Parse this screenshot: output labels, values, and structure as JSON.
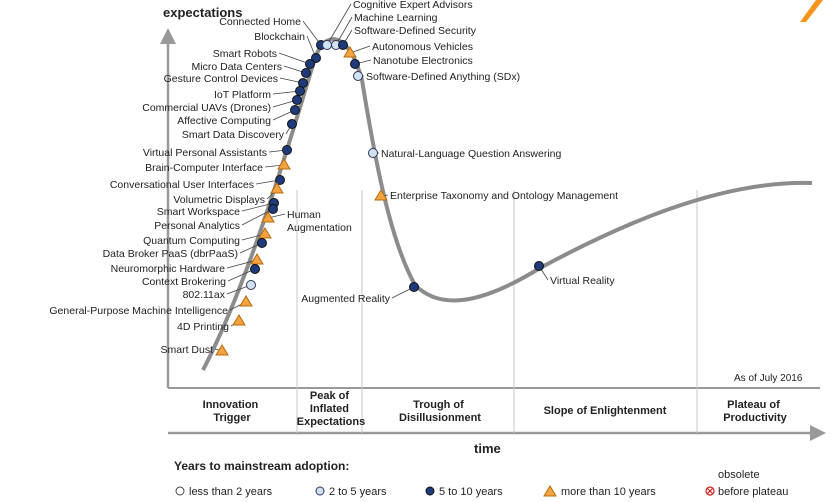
{
  "axes": {
    "y_label": "expectations",
    "x_label": "time"
  },
  "as_of": "As of July 2016",
  "phases": [
    "Innovation Trigger",
    "Peak of Inflated Expectations",
    "Trough of Disillusionment",
    "Slope of Enlightenment",
    "Plateau of Productivity"
  ],
  "technologies": [
    {
      "name": "Connected Home",
      "category": "5-10"
    },
    {
      "name": "Blockchain",
      "category": "5-10"
    },
    {
      "name": "Smart Robots",
      "category": "5-10"
    },
    {
      "name": "Micro Data Centers",
      "category": "5-10"
    },
    {
      "name": "Gesture Control Devices",
      "category": "5-10"
    },
    {
      "name": "IoT Platform",
      "category": "5-10"
    },
    {
      "name": "Commercial UAVs (Drones)",
      "category": "5-10"
    },
    {
      "name": "Affective Computing",
      "category": "5-10"
    },
    {
      "name": "Smart Data Discovery",
      "category": "5-10"
    },
    {
      "name": "Virtual Personal Assistants",
      "category": "5-10"
    },
    {
      "name": "Brain-Computer Interface",
      "category": ">10"
    },
    {
      "name": "Conversational User Interfaces",
      "category": "5-10"
    },
    {
      "name": "Volumetric Displays",
      "category": ">10"
    },
    {
      "name": "Smart Workspace",
      "category": "5-10"
    },
    {
      "name": "Personal Analytics",
      "category": "5-10"
    },
    {
      "name": "Human Augmentation",
      "category": ">10"
    },
    {
      "name": "Quantum Computing",
      "category": ">10"
    },
    {
      "name": "Data Broker PaaS (dbrPaaS)",
      "category": "5-10"
    },
    {
      "name": "Neuromorphic Hardware",
      "category": ">10"
    },
    {
      "name": "Context Brokering",
      "category": "5-10"
    },
    {
      "name": "802.11ax",
      "category": "2-5"
    },
    {
      "name": "General-Purpose Machine Intelligence",
      "category": ">10"
    },
    {
      "name": "4D Printing",
      "category": ">10"
    },
    {
      "name": "Smart Dust",
      "category": ">10"
    },
    {
      "name": "Cognitive Expert Advisors",
      "category": "2-5"
    },
    {
      "name": "Machine Learning",
      "category": "2-5"
    },
    {
      "name": "Software-Defined Security",
      "category": "5-10"
    },
    {
      "name": "Autonomous Vehicles",
      "category": ">10"
    },
    {
      "name": "Nanotube Electronics",
      "category": "5-10"
    },
    {
      "name": "Software-Defined Anything (SDx)",
      "category": "2-5"
    },
    {
      "name": "Natural-Language Question Answering",
      "category": "2-5"
    },
    {
      "name": "Enterprise Taxonomy and Ontology Management",
      "category": ">10"
    },
    {
      "name": "Augmented Reality",
      "category": "5-10"
    },
    {
      "name": "Virtual Reality",
      "category": "5-10"
    }
  ],
  "legend": {
    "title": "Years to mainstream adoption:",
    "items": [
      {
        "key": "lt2",
        "label": "less than 2 years"
      },
      {
        "key": "2-5",
        "label": "2 to 5 years"
      },
      {
        "key": "5-10",
        "label": "5 to 10 years"
      },
      {
        "key": ">10",
        "label": "more than 10 years"
      },
      {
        "key": "obs",
        "label": "before plateau",
        "pre_label": "obsolete"
      }
    ]
  },
  "colors": {
    "curve": "#8c8c8c",
    "dark_dot": "#1f3a7a",
    "light_dot": "#cfe3f5",
    "triangle": "#f4a340",
    "triangle_stroke": "#b56b10",
    "obsolete": "#cc2222",
    "accent": "#f7941d"
  }
}
